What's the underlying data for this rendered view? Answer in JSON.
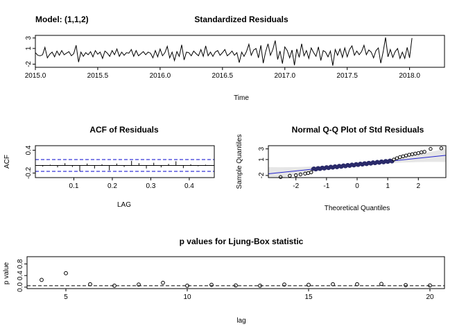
{
  "model_label": "Model: (1,1,2)",
  "chart_data": [
    {
      "id": "residuals",
      "type": "line",
      "title": "Standardized Residuals",
      "xlabel": "Time",
      "ylabel": "",
      "xlim": [
        2015.0,
        2018.28
      ],
      "ylim": [
        -2.6,
        3.5
      ],
      "xticks": [
        2015.0,
        2015.5,
        2016.0,
        2016.5,
        2017.0,
        2017.5,
        2018.0
      ],
      "xtick_labels": [
        "2015.0",
        "2015.5",
        "2016.0",
        "2016.5",
        "2017.0",
        "2017.5",
        "2018.0"
      ],
      "yticks": [
        -2,
        1,
        3
      ],
      "ytick_labels": [
        "-2",
        "1",
        "3"
      ],
      "x_start": 2015.0,
      "x_step": 0.01923,
      "values": [
        0.2,
        -0.3,
        -0.4,
        -0.2,
        1.2,
        -0.8,
        -0.1,
        0.3,
        -0.6,
        0.5,
        -0.3,
        0.6,
        -0.2,
        0.1,
        0.4,
        -0.4,
        0.0,
        1.6,
        -1.6,
        0.3,
        -0.5,
        0.2,
        -0.2,
        0.4,
        -0.6,
        0.6,
        -0.1,
        0.3,
        -0.9,
        0.5,
        0.1,
        -0.5,
        0.6,
        -0.2,
        0.9,
        -0.5,
        0.3,
        -0.3,
        0.2,
        0.1,
        0.8,
        -0.5,
        0.6,
        -0.4,
        0.0,
        0.4,
        -0.2,
        0.3,
        0.1,
        -0.8,
        0.6,
        -0.6,
        0.9,
        -0.4,
        0.2,
        1.4,
        -0.8,
        0.3,
        -1.3,
        0.4,
        -0.5,
        1.7,
        -1.2,
        0.3,
        0.2,
        -0.4,
        0.5,
        0.0,
        -0.4,
        0.8,
        -0.5,
        1.5,
        -0.4,
        0.3,
        -0.5,
        0.3,
        0.6,
        -0.3,
        0.2,
        0.8,
        -0.4,
        0.0,
        0.5,
        -0.3,
        0.2,
        -1.7,
        0.3,
        -0.5,
        0.4,
        1.8,
        -0.3,
        0.7,
        1.0,
        -0.8,
        1.6,
        -1.8,
        0.4,
        1.9,
        -0.3,
        0.8,
        2.5,
        -1.1,
        0.5,
        -1.9,
        1.3,
        0.6,
        -0.8,
        0.7,
        -2.2,
        0.9,
        -0.7,
        1.9,
        -0.4,
        0.6,
        -0.9,
        1.1,
        0.2,
        -0.5,
        1.3,
        -1.3,
        0.6,
        0.3,
        -0.6,
        0.5,
        -2.3,
        0.8,
        -0.3,
        0.9,
        -0.7,
        1.1,
        -0.6,
        0.8,
        1.5,
        -0.3,
        0.5,
        -0.2,
        0.4,
        1.6,
        -0.2,
        0.7,
        0.3,
        -0.8,
        0.6,
        1.1,
        -1.8,
        0.4,
        3.1,
        -0.6,
        0.8,
        -0.7,
        0.4,
        1.0,
        -0.9,
        0.3,
        -0.9,
        1.2,
        -0.8,
        3.0
      ]
    },
    {
      "id": "acf",
      "type": "bar",
      "title": "ACF of Residuals",
      "xlabel": "LAG",
      "ylabel": "ACF",
      "xlim": [
        0.0,
        0.465
      ],
      "ylim": [
        -0.32,
        0.52
      ],
      "xticks": [
        0.1,
        0.2,
        0.3,
        0.4
      ],
      "xtick_labels": [
        "0.1",
        "0.2",
        "0.3",
        "0.4"
      ],
      "yticks": [
        -0.2,
        0.4
      ],
      "ytick_labels": [
        "-0.2",
        "0.4"
      ],
      "lags": [
        0.0192,
        0.0385,
        0.0577,
        0.0769,
        0.0962,
        0.1154,
        0.1346,
        0.1538,
        0.1731,
        0.1923,
        0.2115,
        0.2308,
        0.25,
        0.2692,
        0.2885,
        0.3077,
        0.3269,
        0.3462,
        0.3654,
        0.3846,
        0.4038,
        0.4231,
        0.4423
      ],
      "values": [
        -0.03,
        0.02,
        -0.05,
        0.06,
        -0.04,
        -0.15,
        0.05,
        -0.08,
        0.03,
        -0.13,
        0.05,
        -0.04,
        0.12,
        0.06,
        -0.08,
        0.07,
        -0.05,
        0.04,
        0.11,
        -0.07,
        0.03,
        -0.02,
        0.02
      ],
      "conf_band": 0.155
    },
    {
      "id": "qq",
      "type": "scatter",
      "title": "Normal Q-Q Plot of Std Residuals",
      "xlabel": "Theoretical Quantiles",
      "ylabel": "Sample Quantiles",
      "xlim": [
        -2.9,
        2.9
      ],
      "ylim": [
        -2.4,
        3.6
      ],
      "xticks": [
        -2,
        -1,
        0,
        1,
        2
      ],
      "xtick_labels": [
        "-2",
        "-1",
        "0",
        "1",
        "2"
      ],
      "yticks": [
        -2,
        1,
        3
      ],
      "ytick_labels": [
        "-2",
        "1",
        "3"
      ],
      "n_points": 170,
      "ref_line": {
        "intercept": 0.05,
        "slope": 0.6
      },
      "tail_points": [
        {
          "x": -2.5,
          "y": -2.3
        },
        {
          "x": -2.2,
          "y": -2.05
        },
        {
          "x": -2.0,
          "y": -1.95
        },
        {
          "x": -1.85,
          "y": -1.8
        },
        {
          "x": -1.7,
          "y": -1.65
        },
        {
          "x": -1.6,
          "y": -1.55
        },
        {
          "x": -1.5,
          "y": -1.4
        },
        {
          "x": 1.2,
          "y": 1.0
        },
        {
          "x": 1.3,
          "y": 1.25
        },
        {
          "x": 1.4,
          "y": 1.45
        },
        {
          "x": 1.5,
          "y": 1.6
        },
        {
          "x": 1.6,
          "y": 1.75
        },
        {
          "x": 1.7,
          "y": 1.9
        },
        {
          "x": 1.8,
          "y": 2.0
        },
        {
          "x": 1.9,
          "y": 2.1
        },
        {
          "x": 2.0,
          "y": 2.2
        },
        {
          "x": 2.1,
          "y": 2.35
        },
        {
          "x": 2.2,
          "y": 2.45
        },
        {
          "x": 2.4,
          "y": 3.0
        },
        {
          "x": 2.75,
          "y": 3.1
        }
      ]
    },
    {
      "id": "ljung",
      "type": "scatter",
      "title": "p values for Ljung-Box statistic",
      "xlabel": "lag",
      "ylabel": "p value",
      "xlim": [
        3.4,
        20.6
      ],
      "ylim": [
        -0.05,
        1.05
      ],
      "xticks": [
        5,
        10,
        15,
        20
      ],
      "xtick_labels": [
        "5",
        "10",
        "15",
        "20"
      ],
      "yticks": [
        0.0,
        0.4,
        0.8
      ],
      "ytick_labels": [
        "0.0",
        "0.4",
        "0.8"
      ],
      "x": [
        4,
        5,
        6,
        7,
        8,
        9,
        10,
        11,
        12,
        13,
        14,
        15,
        16,
        17,
        18,
        19,
        20
      ],
      "y": [
        0.25,
        0.48,
        0.1,
        0.05,
        0.09,
        0.15,
        0.05,
        0.08,
        0.06,
        0.05,
        0.09,
        0.08,
        0.1,
        0.1,
        0.11,
        0.07,
        0.06
      ],
      "hline": 0.05
    }
  ]
}
